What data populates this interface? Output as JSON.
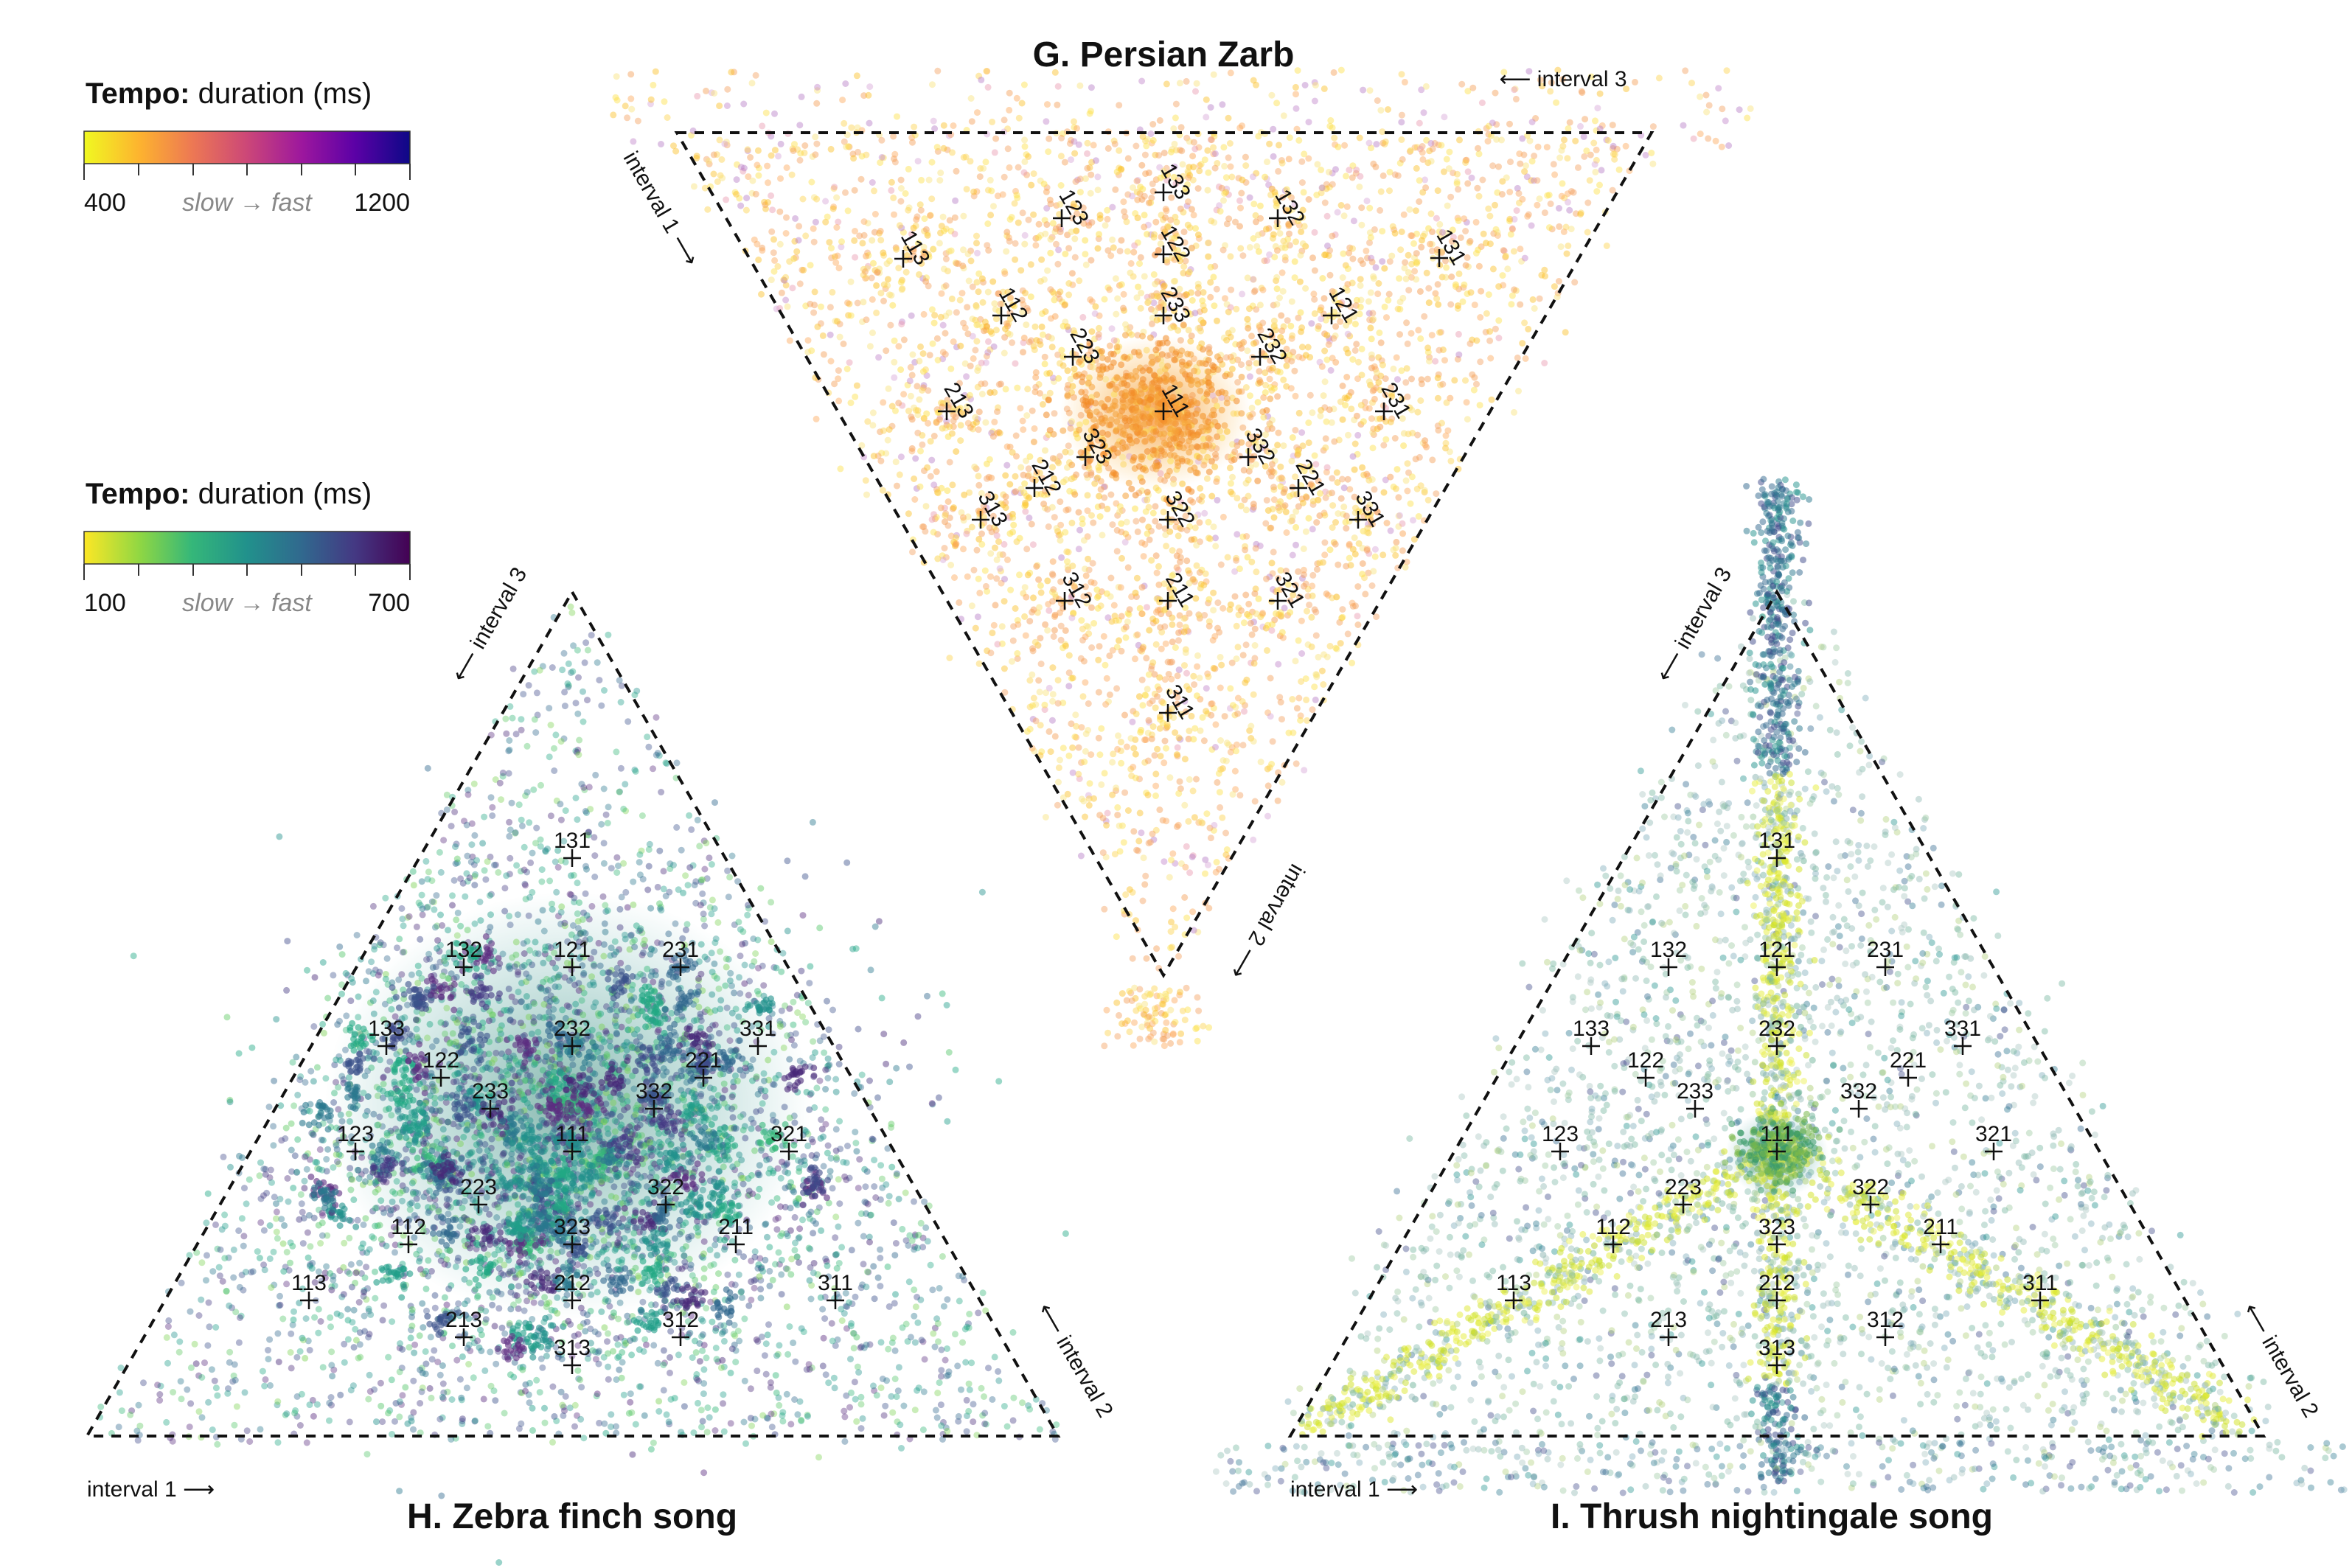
{
  "colorbars": [
    {
      "title_bold": "Tempo:",
      "title_rest": " duration (ms)",
      "min_label": "400",
      "max_label": "1200",
      "mid_label": "slow → fast",
      "palette": "plasma",
      "stops": [
        "#f0f921",
        "#fdb32f",
        "#ed7953",
        "#cc4778",
        "#9c179e",
        "#5c01a6",
        "#0d0887"
      ]
    },
    {
      "title_bold": "Tempo:",
      "title_rest": " duration (ms)",
      "min_label": "100",
      "max_label": "700",
      "mid_label": "slow → fast",
      "palette": "viridis",
      "stops": [
        "#fde725",
        "#90d743",
        "#35b779",
        "#21918c",
        "#31688e",
        "#443983",
        "#440154"
      ]
    }
  ],
  "chart_data": [
    {
      "type": "scatter",
      "subtype": "ternary",
      "title": "G. Persian Zarb",
      "orientation": "inverted",
      "axis_labels": [
        "interval 1 ⟶",
        "interval 2 ⟶",
        "⟵ interval 3"
      ],
      "color_scale": "plasma",
      "dominant_color": "#fdb32f",
      "hotspot": "111",
      "markers": [
        "133",
        "132",
        "123",
        "122",
        "131",
        "113",
        "112",
        "233",
        "121",
        "223",
        "232",
        "213",
        "111",
        "231",
        "323",
        "332",
        "212",
        "221",
        "313",
        "331",
        "322",
        "312",
        "211",
        "321",
        "311"
      ]
    },
    {
      "type": "scatter",
      "subtype": "ternary",
      "title": "H. Zebra finch song",
      "orientation": "upright",
      "axis_labels": [
        "interval 1 ⟶",
        "⟵ interval 2",
        "⟵ interval 3"
      ],
      "color_scale": "viridis",
      "dominant_color": "#21918c",
      "hotspot": "111",
      "markers": [
        "131",
        "132",
        "121",
        "231",
        "133",
        "232",
        "331",
        "122",
        "221",
        "233",
        "332",
        "123",
        "111",
        "321",
        "223",
        "322",
        "112",
        "323",
        "211",
        "113",
        "212",
        "311",
        "213",
        "312",
        "313"
      ]
    },
    {
      "type": "scatter",
      "subtype": "ternary",
      "title": "I. Thrush nightingale song",
      "orientation": "upright",
      "axis_labels": [
        "interval 1 ⟶",
        "⟵ interval 2",
        "⟵ interval 3"
      ],
      "color_scale": "viridis",
      "dominant_color": "#b5de2b",
      "hotspot": "111",
      "markers": [
        "131",
        "132",
        "121",
        "231",
        "133",
        "232",
        "331",
        "122",
        "221",
        "233",
        "332",
        "123",
        "111",
        "321",
        "223",
        "322",
        "112",
        "323",
        "211",
        "113",
        "212",
        "311",
        "213",
        "312",
        "313"
      ]
    }
  ]
}
